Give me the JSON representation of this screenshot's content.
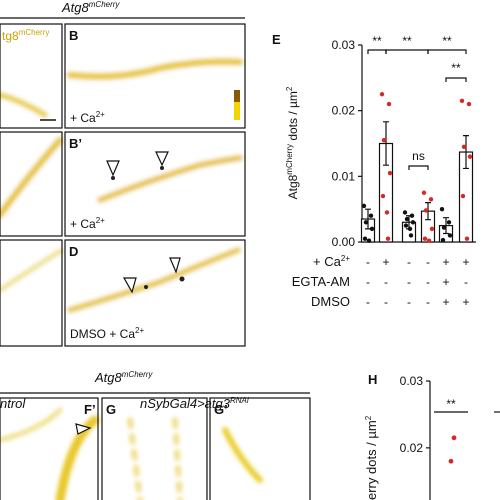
{
  "figure": {
    "header_top": [
      "Atg8",
      "mCherry"
    ],
    "header_bottom": [
      "Atg8",
      "mCherry"
    ],
    "inset_a": [
      "tg8",
      "mCherry"
    ],
    "panels": [
      "B",
      "B’",
      "D",
      "E",
      "F’",
      "G",
      "G’",
      "H"
    ],
    "caption_b": [
      "+ Ca",
      "2+"
    ],
    "caption_b2": [
      "+ Ca",
      "2+"
    ],
    "caption_d": [
      "DMSO + Ca",
      "2+"
    ],
    "group_control": "ntrol",
    "group_rnai": [
      "nSybGal4>atg3",
      "RNAi"
    ]
  },
  "chart_data": [
    {
      "type": "bar",
      "ylabel": [
        "Atg8",
        "mCherry",
        " dots / µm",
        "2"
      ],
      "ylim": [
        0,
        0.03
      ],
      "yticks": [
        {
          "value": 0,
          "label": "0.00"
        },
        0.01,
        0.02,
        0.03
      ],
      "values": [
        0.0035,
        0.015,
        0.003,
        0.0047,
        0.0025,
        0.0137
      ],
      "errors": [
        0.0015,
        0.0033,
        0.001,
        0.0013,
        0.0012,
        0.0025
      ],
      "points": [
        [
          0.0055,
          0.004,
          0.003,
          0.002,
          0.0005,
          0.0002
        ],
        [
          0.0225,
          0.021,
          0.0155,
          0.0105,
          0.007,
          0.0045,
          0.0005
        ],
        [
          0.0045,
          0.004,
          0.0035,
          0.003,
          0.0025,
          0.002,
          0.001
        ],
        [
          0.0075,
          0.0065,
          0.0048,
          0.002,
          0.0005,
          0.0002
        ],
        [
          0.005,
          0.003,
          0.0022,
          0.001,
          0.0003
        ],
        [
          0.0215,
          0.021,
          0.0145,
          0.013,
          0.007,
          0.0005
        ]
      ],
      "point_colors": [
        "#111111",
        "#d62828",
        "#111111",
        "#d62828",
        "#111111",
        "#d62828"
      ],
      "annotations": [
        "**",
        "**",
        "**",
        "ns",
        "**"
      ],
      "conditions": [
        {
          "name": [
            "+ Ca",
            "2+"
          ],
          "values": [
            "-",
            "+",
            "-",
            "-",
            "+",
            "+"
          ]
        },
        {
          "name": [
            "EGTA-AM"
          ],
          "values": [
            "-",
            "-",
            "-",
            "-",
            "+",
            "-"
          ]
        },
        {
          "name": [
            "DMSO"
          ],
          "values": [
            "-",
            "-",
            "-",
            "-",
            "+",
            "+"
          ]
        }
      ]
    },
    {
      "type": "scatter",
      "ylabel": [
        "erry",
        " dots / µm",
        "2"
      ],
      "ylim": [
        0.0125,
        0.03
      ],
      "yticks": [
        0.02,
        0.03
      ],
      "values": [
        0.0215,
        0.018
      ],
      "color": "#d62828",
      "annotations": [
        "**"
      ]
    }
  ]
}
